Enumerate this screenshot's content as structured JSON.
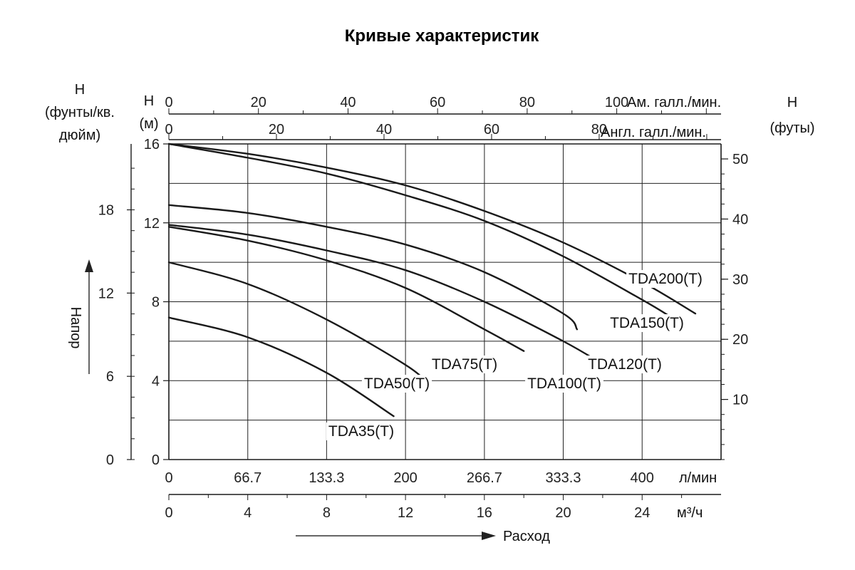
{
  "chart_data": {
    "type": "line",
    "title": "Кривые характеристик",
    "ylabel": "Напор",
    "xlabel": "Расход",
    "left_axis_units": {
      "line1": "Н",
      "line2": "(фунты/кв.",
      "line3": "дюйм)"
    },
    "meters_axis_units": {
      "line1": "Н",
      "line2": "(м)"
    },
    "right_axis_units": {
      "line1": "Н",
      "line2": "(футы)"
    },
    "y_meters": {
      "ticks": [
        "0",
        "4",
        "8",
        "12",
        "16"
      ],
      "ylim": [
        0,
        16
      ]
    },
    "y_psi": {
      "ticks": [
        "0",
        "6",
        "12",
        "18"
      ]
    },
    "y_feet": {
      "ticks": [
        "10",
        "20",
        "30",
        "40",
        "50"
      ]
    },
    "x_lpm": {
      "ticks": [
        "0",
        "66.7",
        "133.3",
        "200",
        "266.7",
        "333.3",
        "400"
      ],
      "unit": "л/мин",
      "xlim": [
        0,
        466.7
      ]
    },
    "x_m3h": {
      "ticks": [
        "0",
        "4",
        "8",
        "12",
        "16",
        "20",
        "24"
      ],
      "unit": "м³/ч"
    },
    "x_us_gpm": {
      "ticks": [
        "0",
        "20",
        "40",
        "60",
        "80",
        "100"
      ],
      "unit": "Ам. галл./мин."
    },
    "x_uk_gpm": {
      "ticks": [
        "0",
        "20",
        "40",
        "60",
        "80"
      ],
      "unit": "Англ. галл./мин."
    },
    "series": [
      {
        "name": "TDA35(T)",
        "x": [
          0,
          66.7,
          133.3,
          190
        ],
        "y": [
          7.2,
          6.2,
          4.4,
          2.2
        ]
      },
      {
        "name": "TDA50(T)",
        "x": [
          0,
          66.7,
          133.3,
          200,
          220
        ],
        "y": [
          10.0,
          8.9,
          7.1,
          4.8,
          3.8
        ]
      },
      {
        "name": "TDA75(T)",
        "x": [
          0,
          66.7,
          133.3,
          200,
          266.7,
          300
        ],
        "y": [
          11.8,
          11.1,
          10.1,
          8.7,
          6.6,
          5.5
        ]
      },
      {
        "name": "TDA100(T)",
        "x": [
          0,
          66.7,
          133.3,
          200,
          266.7,
          333.3,
          365
        ],
        "y": [
          11.9,
          11.4,
          10.6,
          9.6,
          8.0,
          6.0,
          4.9
        ]
      },
      {
        "name": "TDA120(T)",
        "x": [
          0,
          66.7,
          133.3,
          200,
          266.7,
          333.3,
          345
        ],
        "y": [
          12.9,
          12.5,
          11.8,
          10.9,
          9.5,
          7.4,
          6.6
        ]
      },
      {
        "name": "TDA150(T)",
        "x": [
          0,
          66.7,
          133.3,
          200,
          266.7,
          333.3,
          400,
          425
        ],
        "y": [
          16.0,
          15.3,
          14.5,
          13.4,
          12.1,
          10.3,
          8.1,
          7.2
        ]
      },
      {
        "name": "TDA200(T)",
        "x": [
          0,
          66.7,
          133.3,
          200,
          266.7,
          333.3,
          400,
          445
        ],
        "y": [
          16.0,
          15.5,
          14.8,
          13.9,
          12.6,
          11.0,
          9.0,
          7.4
        ]
      }
    ],
    "grid": true,
    "colors": {
      "line": "#1a1a1a",
      "grid": "#222222",
      "background": "#ffffff"
    }
  }
}
